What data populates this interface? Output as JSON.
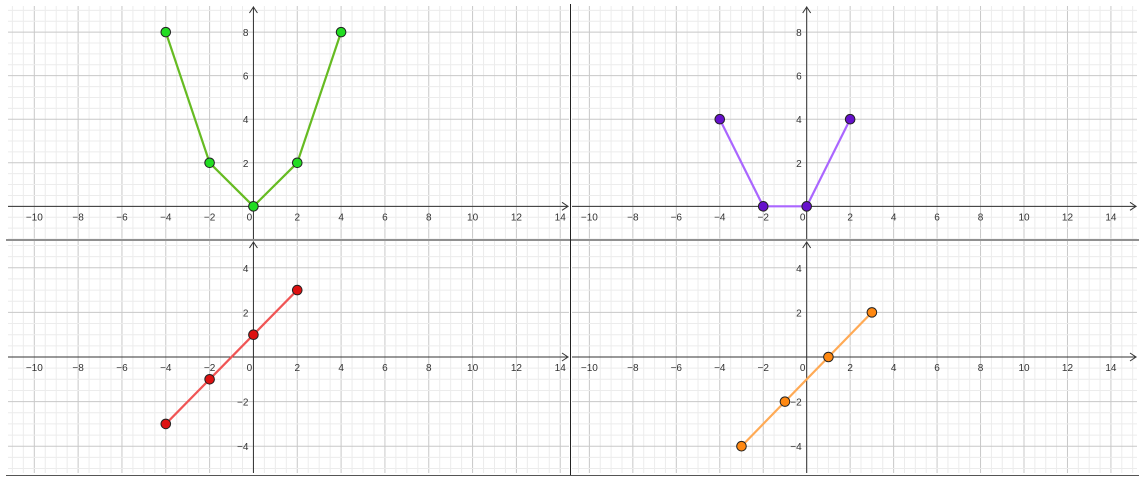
{
  "chart_data": [
    {
      "type": "line",
      "xlim": [
        -11.2,
        14.4
      ],
      "ylim": [
        -1.5,
        9.2
      ],
      "x_ticks": [
        "−10",
        "−8",
        "−6",
        "−4",
        "−2",
        "0",
        "2",
        "4",
        "6",
        "8",
        "10",
        "12",
        "14"
      ],
      "y_ticks": [
        "2",
        "4",
        "6",
        "8"
      ],
      "grid": true,
      "series": [
        {
          "points": [
            [
              -4,
              8
            ],
            [
              -2,
              2
            ],
            [
              0,
              0
            ],
            [
              2,
              2
            ],
            [
              4,
              8
            ]
          ],
          "line_color": "#66bb22",
          "marker_color": "#22dd22"
        }
      ]
    },
    {
      "type": "line",
      "xlim": [
        -10.8,
        15.2
      ],
      "ylim": [
        -1.5,
        9.2
      ],
      "x_ticks": [
        "−10",
        "−8",
        "−6",
        "−4",
        "−2",
        "0",
        "2",
        "4",
        "6",
        "8",
        "10",
        "12",
        "14"
      ],
      "y_ticks": [
        "2",
        "4",
        "6",
        "8"
      ],
      "grid": true,
      "series": [
        {
          "points": [
            [
              -4,
              4
            ],
            [
              -2,
              0
            ],
            [
              0,
              0
            ],
            [
              2,
              4
            ]
          ],
          "line_color": "#aa66ff",
          "marker_color": "#6611cc"
        }
      ]
    },
    {
      "type": "line",
      "xlim": [
        -11.2,
        14.4
      ],
      "ylim": [
        -5.2,
        5.2
      ],
      "x_ticks": [
        "−10",
        "−8",
        "−6",
        "−4",
        "−2",
        "0",
        "2",
        "4",
        "6",
        "8",
        "10",
        "12",
        "14"
      ],
      "y_ticks": [
        "−4",
        "−2",
        "2",
        "4"
      ],
      "grid": true,
      "series": [
        {
          "points": [
            [
              -4,
              -3
            ],
            [
              -2,
              -1
            ],
            [
              0,
              1
            ],
            [
              2,
              3
            ]
          ],
          "line_color": "#f05555",
          "marker_color": "#dd1111"
        }
      ]
    },
    {
      "type": "line",
      "xlim": [
        -10.8,
        15.2
      ],
      "ylim": [
        -5.2,
        5.2
      ],
      "x_ticks": [
        "−10",
        "−8",
        "−6",
        "−4",
        "−2",
        "0",
        "2",
        "4",
        "6",
        "8",
        "10",
        "12",
        "14"
      ],
      "y_ticks": [
        "−4",
        "−2",
        "2",
        "4"
      ],
      "grid": true,
      "series": [
        {
          "points": [
            [
              -3,
              -4
            ],
            [
              -1,
              -2
            ],
            [
              1,
              0
            ],
            [
              3,
              2
            ]
          ],
          "line_color": "#ffaa55",
          "marker_color": "#ff8811"
        }
      ]
    }
  ]
}
